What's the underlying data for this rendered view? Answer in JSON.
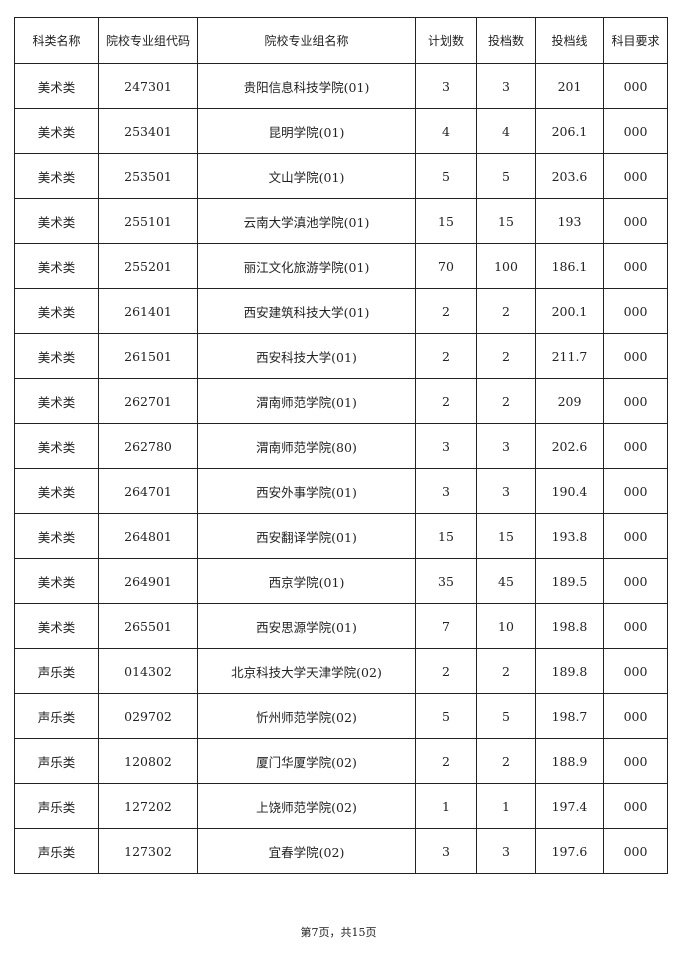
{
  "table": {
    "headers": [
      "科类名称",
      "院校专业组代码",
      "院校专业组名称",
      "计划数",
      "投档数",
      "投档线",
      "科目要求"
    ],
    "rows": [
      [
        "美术类",
        "247301",
        "贵阳信息科技学院(01)",
        "3",
        "3",
        "201",
        "000"
      ],
      [
        "美术类",
        "253401",
        "昆明学院(01)",
        "4",
        "4",
        "206.1",
        "000"
      ],
      [
        "美术类",
        "253501",
        "文山学院(01)",
        "5",
        "5",
        "203.6",
        "000"
      ],
      [
        "美术类",
        "255101",
        "云南大学滇池学院(01)",
        "15",
        "15",
        "193",
        "000"
      ],
      [
        "美术类",
        "255201",
        "丽江文化旅游学院(01)",
        "70",
        "100",
        "186.1",
        "000"
      ],
      [
        "美术类",
        "261401",
        "西安建筑科技大学(01)",
        "2",
        "2",
        "200.1",
        "000"
      ],
      [
        "美术类",
        "261501",
        "西安科技大学(01)",
        "2",
        "2",
        "211.7",
        "000"
      ],
      [
        "美术类",
        "262701",
        "渭南师范学院(01)",
        "2",
        "2",
        "209",
        "000"
      ],
      [
        "美术类",
        "262780",
        "渭南师范学院(80)",
        "3",
        "3",
        "202.6",
        "000"
      ],
      [
        "美术类",
        "264701",
        "西安外事学院(01)",
        "3",
        "3",
        "190.4",
        "000"
      ],
      [
        "美术类",
        "264801",
        "西安翻译学院(01)",
        "15",
        "15",
        "193.8",
        "000"
      ],
      [
        "美术类",
        "264901",
        "西京学院(01)",
        "35",
        "45",
        "189.5",
        "000"
      ],
      [
        "美术类",
        "265501",
        "西安思源学院(01)",
        "7",
        "10",
        "198.8",
        "000"
      ],
      [
        "声乐类",
        "014302",
        "北京科技大学天津学院(02)",
        "2",
        "2",
        "189.8",
        "000"
      ],
      [
        "声乐类",
        "029702",
        "忻州师范学院(02)",
        "5",
        "5",
        "198.7",
        "000"
      ],
      [
        "声乐类",
        "120802",
        "厦门华厦学院(02)",
        "2",
        "2",
        "188.9",
        "000"
      ],
      [
        "声乐类",
        "127202",
        "上饶师范学院(02)",
        "1",
        "1",
        "197.4",
        "000"
      ],
      [
        "声乐类",
        "127302",
        "宜春学院(02)",
        "3",
        "3",
        "197.6",
        "000"
      ]
    ]
  },
  "footer": {
    "page_label": "第7页，共15页"
  }
}
